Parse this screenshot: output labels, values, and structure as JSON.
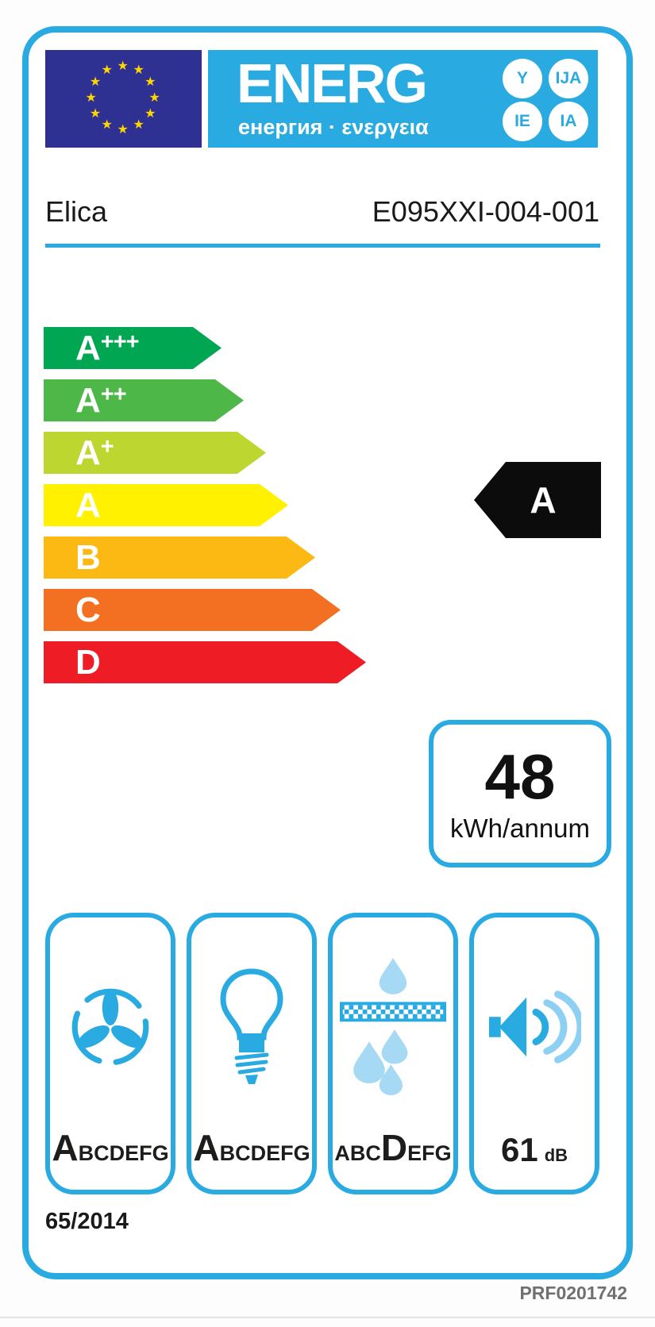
{
  "header": {
    "energ_text": "ENERG",
    "subtitle": "енергия · ενεργεια",
    "suffixes": [
      "Y",
      "IJA",
      "IE",
      "IA"
    ]
  },
  "supplier": {
    "brand": "Elica",
    "model": "E095XXI-004-001"
  },
  "rating_scale": [
    {
      "letter": "A",
      "plus": "+++",
      "color": "#00a651"
    },
    {
      "letter": "A",
      "plus": "++",
      "color": "#4db848"
    },
    {
      "letter": "A",
      "plus": "+",
      "color": "#bed630"
    },
    {
      "letter": "A",
      "plus": "",
      "color": "#fff100"
    },
    {
      "letter": "B",
      "plus": "",
      "color": "#fdb913"
    },
    {
      "letter": "C",
      "plus": "",
      "color": "#f36f21"
    },
    {
      "letter": "D",
      "plus": "",
      "color": "#ee1c25"
    }
  ],
  "rating": {
    "class": "A"
  },
  "energy": {
    "value": "48",
    "unit": "kWh/annum"
  },
  "metrics": [
    {
      "name": "fluid dynamic efficiency",
      "icon": "fan-icon",
      "pre": "",
      "class": "A",
      "post": "BCDEFG"
    },
    {
      "name": "lighting efficiency",
      "icon": "bulb-icon",
      "pre": "",
      "class": "A",
      "post": "BCDEFG"
    },
    {
      "name": "grease filtering efficiency",
      "icon": "grease-filter-icon",
      "pre": "ABC",
      "class": "D",
      "post": "EFG"
    },
    {
      "name": "noise level",
      "icon": "speaker-icon",
      "value": "61",
      "unit": "dB"
    }
  ],
  "footer": {
    "regulation": "65/2014",
    "reference": "PRF0201742"
  },
  "colors": {
    "accent_blue": "#29abe2",
    "light_blue": "#8ed0f3",
    "droplet_blue": "#a6d9f4",
    "eu_flag_blue": "#2e3192",
    "star_yellow": "#ffd500",
    "indicator_black": "#0c0c0c"
  }
}
